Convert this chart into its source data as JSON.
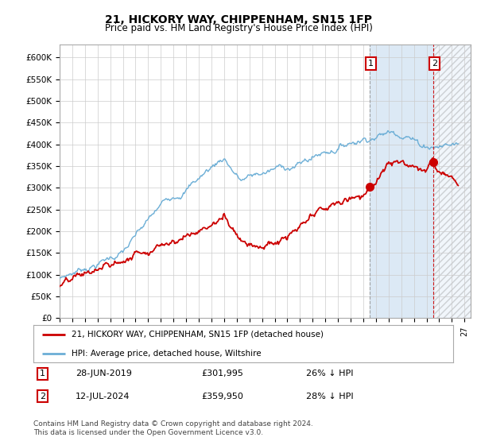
{
  "title": "21, HICKORY WAY, CHIPPENHAM, SN15 1FP",
  "subtitle": "Price paid vs. HM Land Registry's House Price Index (HPI)",
  "ylabel_ticks": [
    "£0",
    "£50K",
    "£100K",
    "£150K",
    "£200K",
    "£250K",
    "£300K",
    "£350K",
    "£400K",
    "£450K",
    "£500K",
    "£550K",
    "£600K"
  ],
  "ylim": [
    0,
    630000
  ],
  "xlim_start": 1995.0,
  "xlim_end": 2027.5,
  "marker1_x": 2019.49,
  "marker1_y": 301995,
  "marker2_x": 2024.54,
  "marker2_y": 359950,
  "marker1_date": "28-JUN-2019",
  "marker1_price": "£301,995",
  "marker1_hpi": "26% ↓ HPI",
  "marker2_date": "12-JUL-2024",
  "marker2_price": "£359,950",
  "marker2_hpi": "28% ↓ HPI",
  "hpi_color": "#6baed6",
  "price_color": "#cc0000",
  "legend_label1": "21, HICKORY WAY, CHIPPENHAM, SN15 1FP (detached house)",
  "legend_label2": "HPI: Average price, detached house, Wiltshire",
  "footer": "Contains HM Land Registry data © Crown copyright and database right 2024.\nThis data is licensed under the Open Government Licence v3.0.",
  "background_color": "#ffffff",
  "grid_color": "#cccccc",
  "light_blue_bg": "#ddeeff",
  "hatch_bg": "#e8e8e8"
}
